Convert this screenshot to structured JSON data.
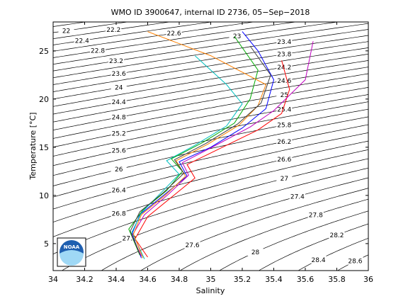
{
  "chart_data": {
    "type": "ts-diagram",
    "title": "WMO ID 3900647, internal ID 2736, 05−Sep−2018",
    "x_label": "Salinity",
    "y_label": "Temperature [°C]",
    "logo_text": "NOAA",
    "xlim": [
      34,
      36
    ],
    "ylim": [
      2.2,
      28
    ],
    "xticks": [
      34,
      34.2,
      34.4,
      34.6,
      34.8,
      35,
      35.2,
      35.4,
      35.6,
      35.8,
      36
    ],
    "yticks": [
      5,
      10,
      15,
      20,
      25
    ],
    "contours": {
      "color": "#000000",
      "levels": [
        21.6,
        21.8,
        22,
        22.2,
        22.4,
        22.6,
        22.8,
        23,
        23.2,
        23.4,
        23.6,
        23.8,
        24,
        24.2,
        24.4,
        24.6,
        24.8,
        25,
        25.2,
        25.4,
        25.6,
        25.8,
        26,
        26.2,
        26.4,
        26.6,
        26.8,
        27,
        27.2,
        27.4,
        27.6,
        27.8,
        28,
        28.2,
        28.4,
        28.6
      ]
    },
    "series": [
      {
        "color": "#0000ff",
        "x": [
          34.56,
          34.5,
          34.55,
          34.7,
          34.85,
          34.8,
          35.0,
          35.2,
          35.35,
          35.4,
          35.3,
          35.2
        ],
        "values": [
          3.5,
          6,
          8,
          10,
          12,
          13.5,
          15,
          17,
          19,
          22,
          25,
          27
        ]
      },
      {
        "color": "#00aa00",
        "x": [
          34.55,
          34.48,
          34.57,
          34.72,
          34.82,
          34.75,
          34.95,
          35.15,
          35.25,
          35.3,
          35.15
        ],
        "values": [
          3.8,
          6.5,
          8.5,
          10.5,
          12.5,
          13.8,
          15.5,
          17.5,
          20,
          23,
          26.5
        ]
      },
      {
        "color": "#ff0000",
        "x": [
          34.6,
          34.52,
          34.6,
          34.75,
          34.9,
          34.85,
          35.05,
          35.3,
          35.45,
          35.5,
          35.45
        ],
        "values": [
          3.6,
          5.5,
          7.8,
          9.8,
          11.8,
          13.2,
          14.8,
          16.8,
          18.5,
          21,
          24
        ]
      },
      {
        "color": "#00bfbf",
        "x": [
          34.58,
          34.5,
          34.56,
          34.68,
          34.8,
          34.72,
          34.9,
          35.1,
          35.2,
          35.1,
          34.9
        ],
        "values": [
          3.4,
          6.2,
          8.2,
          10.2,
          12.2,
          13.6,
          15.2,
          17.2,
          19.5,
          21.5,
          24.5
        ]
      },
      {
        "color": "#bf00bf",
        "x": [
          34.56,
          34.5,
          34.58,
          34.73,
          34.86,
          34.82,
          35.02,
          35.25,
          35.4,
          35.6,
          35.65
        ],
        "values": [
          3.7,
          5.8,
          8.0,
          10.1,
          12.1,
          13.4,
          15.1,
          17.1,
          18.8,
          22,
          26
        ]
      },
      {
        "color": "#ff8000",
        "x": [
          34.57,
          34.51,
          34.56,
          34.71,
          34.84,
          34.78,
          34.98,
          35.18,
          35.3,
          35.35,
          35.0,
          34.6
        ],
        "values": [
          3.5,
          6,
          8,
          10,
          12,
          13.6,
          15.3,
          17.3,
          19.3,
          21.5,
          24.5,
          27
        ]
      },
      {
        "color": "#404040",
        "x": [
          34.55,
          34.49,
          34.55,
          34.7,
          34.83,
          34.77,
          34.97,
          35.17,
          35.32,
          35.38,
          35.25
        ],
        "values": [
          3.9,
          6.3,
          8.3,
          10.3,
          12.3,
          13.7,
          15.4,
          17.4,
          19.6,
          22.5,
          25.5
        ]
      }
    ]
  }
}
